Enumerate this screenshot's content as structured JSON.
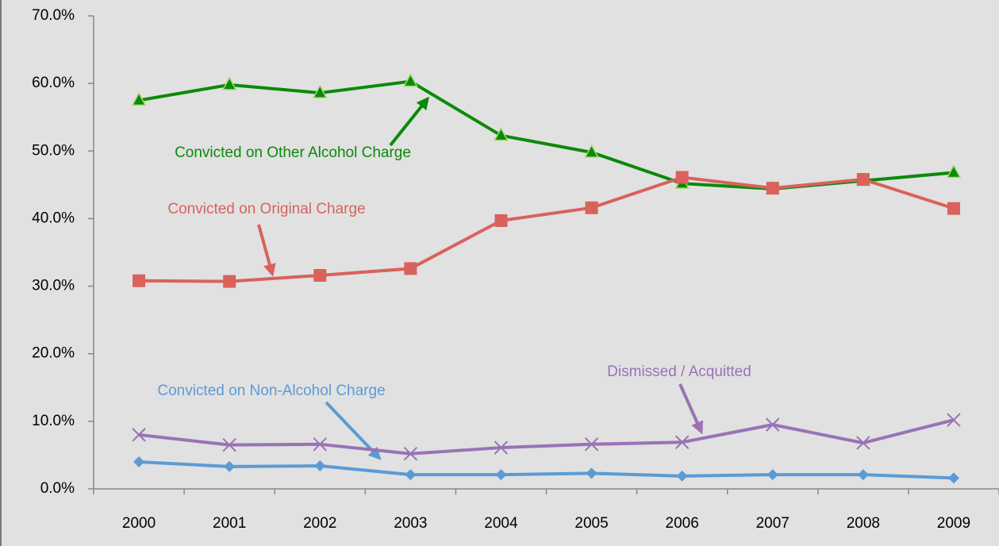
{
  "chart_data": {
    "type": "line",
    "categories": [
      "2000",
      "2001",
      "2002",
      "2003",
      "2004",
      "2005",
      "2006",
      "2007",
      "2008",
      "2009"
    ],
    "series": [
      {
        "name": "Convicted on Other Alcohol Charge",
        "color": "#0a8a0a",
        "marker": "triangle",
        "values": [
          57.5,
          59.8,
          58.6,
          60.3,
          52.3,
          49.8,
          45.2,
          44.4,
          45.6,
          46.8
        ]
      },
      {
        "name": "Convicted on Original Charge",
        "color": "#d9625c",
        "marker": "square",
        "values": [
          30.8,
          30.7,
          31.6,
          32.6,
          39.7,
          41.6,
          46.1,
          44.5,
          45.8,
          41.5
        ]
      },
      {
        "name": "Dismissed / Acquitted",
        "color": "#9a72b5",
        "marker": "x",
        "values": [
          8.0,
          6.5,
          6.6,
          5.2,
          6.1,
          6.6,
          6.9,
          9.5,
          6.8,
          10.2
        ]
      },
      {
        "name": "Convicted on Non-Alcohol Charge",
        "color": "#5b9bd5",
        "marker": "diamond",
        "values": [
          4.0,
          3.3,
          3.4,
          2.1,
          2.1,
          2.3,
          1.9,
          2.1,
          2.1,
          1.6
        ]
      }
    ],
    "ylim": [
      0,
      70
    ],
    "yticks": [
      {
        "value": 0,
        "label": "0.0%"
      },
      {
        "value": 10,
        "label": "10.0%"
      },
      {
        "value": 20,
        "label": "20.0%"
      },
      {
        "value": 30,
        "label": "30.0%"
      },
      {
        "value": 40,
        "label": "40.0%"
      },
      {
        "value": 50,
        "label": "50.0%"
      },
      {
        "value": 60,
        "label": "60.0%"
      },
      {
        "value": 70,
        "label": "70.0%"
      }
    ],
    "grid": false
  }
}
